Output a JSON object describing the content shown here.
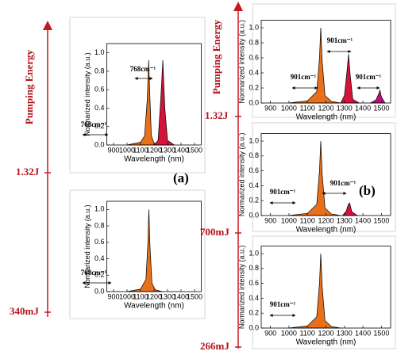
{
  "labels": {
    "energy_a": "Pumping Energy",
    "a_high": "1.32J",
    "a_low": "340mJ",
    "panel_a": "(a)",
    "energy_b": "Pumping Energy",
    "b_high": "1.32J",
    "b_mid": "700mJ",
    "b_low": "266mJ",
    "panel_b": "(b)"
  },
  "chart_data": [
    {
      "type": "area",
      "xlabel": "Wavelength (nm)",
      "ylabel": "Normarized intensity (a.u.)",
      "xlim": [
        850,
        1550
      ],
      "ylim": [
        0,
        1.1
      ],
      "xticks": [
        900,
        1000,
        1100,
        1200,
        1300,
        1400,
        1500
      ],
      "yticks": [
        {
          "value": 0,
          "label": "0.0"
        },
        0.2,
        0.4,
        0.6,
        0.8,
        {
          "value": 1,
          "label": "1.0"
        }
      ],
      "annotations": [
        "768cm⁻¹",
        "768cm⁻¹"
      ],
      "series": [
        {
          "color": "#e8701a",
          "x": [
            1000,
            1100,
            1130,
            1150,
            1160,
            1170,
            1180,
            1200,
            1230
          ],
          "values": [
            0,
            0.03,
            0.1,
            0.5,
            0.92,
            0.5,
            0.1,
            0.02,
            0
          ]
        },
        {
          "color": "#d4123a",
          "x": [
            1200,
            1230,
            1250,
            1265,
            1280,
            1300,
            1350
          ],
          "values": [
            0,
            0.05,
            0.5,
            0.92,
            0.4,
            0.05,
            0
          ]
        }
      ]
    },
    {
      "type": "area",
      "xlabel": "Wavelength (nm)",
      "ylabel": "Normarized intensity (a.u.)",
      "xlim": [
        850,
        1550
      ],
      "ylim": [
        0,
        1.1
      ],
      "xticks": [
        900,
        1000,
        1100,
        1200,
        1300,
        1400,
        1500
      ],
      "yticks": [
        {
          "value": 0,
          "label": "0.0"
        },
        0.2,
        0.4,
        0.6,
        0.8,
        {
          "value": 1,
          "label": "1.0"
        }
      ],
      "annotations": [
        "768cm⁻¹"
      ],
      "series": [
        {
          "color": "#e8701a",
          "x": [
            1000,
            1100,
            1140,
            1155,
            1162,
            1170,
            1185,
            1210,
            1260
          ],
          "values": [
            0,
            0.03,
            0.15,
            0.6,
            1,
            0.55,
            0.1,
            0.02,
            0
          ]
        }
      ]
    },
    {
      "type": "area",
      "xlabel": "Wavelength (nm)",
      "ylabel": "Normarized intensity (a.u.)",
      "xlim": [
        850,
        1550
      ],
      "ylim": [
        0,
        1.1
      ],
      "xticks": [
        900,
        1000,
        1100,
        1200,
        1300,
        1400,
        1500
      ],
      "yticks": [
        {
          "value": 0,
          "label": "0.0"
        },
        0.2,
        0.4,
        0.6,
        0.8,
        {
          "value": 1,
          "label": "1.0"
        }
      ],
      "annotations": [
        "901cm⁻¹",
        "901cm⁻¹",
        "901cm⁻¹"
      ],
      "series": [
        {
          "color": "#e8701a",
          "x": [
            1000,
            1100,
            1150,
            1165,
            1172,
            1180,
            1195,
            1230,
            1280
          ],
          "values": [
            0,
            0.03,
            0.15,
            0.6,
            1,
            0.55,
            0.1,
            0.02,
            0
          ]
        },
        {
          "color": "#d4123a",
          "x": [
            1280,
            1300,
            1315,
            1322,
            1330,
            1345,
            1380
          ],
          "values": [
            0,
            0.1,
            0.45,
            0.65,
            0.4,
            0.05,
            0
          ]
        },
        {
          "color": "#b8107a",
          "x": [
            1440,
            1470,
            1485,
            1492,
            1500,
            1520
          ],
          "values": [
            0,
            0.04,
            0.12,
            0.17,
            0.08,
            0
          ]
        }
      ]
    },
    {
      "type": "area",
      "xlabel": "Wavelength (nm)",
      "ylabel": "Normarized intensity (a.u.)",
      "xlim": [
        850,
        1550
      ],
      "ylim": [
        0,
        1.1
      ],
      "xticks": [
        900,
        1000,
        1100,
        1200,
        1300,
        1400,
        1500
      ],
      "yticks": [
        {
          "value": 0,
          "label": "0.0"
        },
        0.2,
        0.4,
        0.6,
        0.8,
        {
          "value": 1,
          "label": "1.0"
        }
      ],
      "annotations": [
        "901cm⁻¹",
        "901cm⁻¹"
      ],
      "series": [
        {
          "color": "#e8701a",
          "x": [
            1000,
            1100,
            1150,
            1165,
            1172,
            1180,
            1195,
            1230,
            1280
          ],
          "values": [
            0,
            0.03,
            0.15,
            0.6,
            1,
            0.55,
            0.1,
            0.02,
            0
          ]
        },
        {
          "color": "#d4123a",
          "x": [
            1290,
            1310,
            1320,
            1328,
            1340,
            1370
          ],
          "values": [
            0,
            0.06,
            0.14,
            0.17,
            0.05,
            0
          ]
        }
      ]
    },
    {
      "type": "area",
      "xlabel": "Wavelength (nm)",
      "ylabel": "Normarized intensity (a.u.)",
      "xlim": [
        850,
        1550
      ],
      "ylim": [
        0,
        1.1
      ],
      "xticks": [
        900,
        1000,
        1100,
        1200,
        1300,
        1400,
        1500
      ],
      "yticks": [
        {
          "value": 0,
          "label": "0.0"
        },
        0.2,
        0.4,
        0.6,
        0.8,
        {
          "value": 1,
          "label": "1.0"
        }
      ],
      "annotations": [
        "901cm⁻¹"
      ],
      "series": [
        {
          "color": "#e8701a",
          "x": [
            1000,
            1100,
            1150,
            1165,
            1172,
            1180,
            1195,
            1230,
            1280
          ],
          "values": [
            0,
            0.03,
            0.15,
            0.6,
            1,
            0.55,
            0.1,
            0.02,
            0
          ]
        }
      ]
    }
  ]
}
